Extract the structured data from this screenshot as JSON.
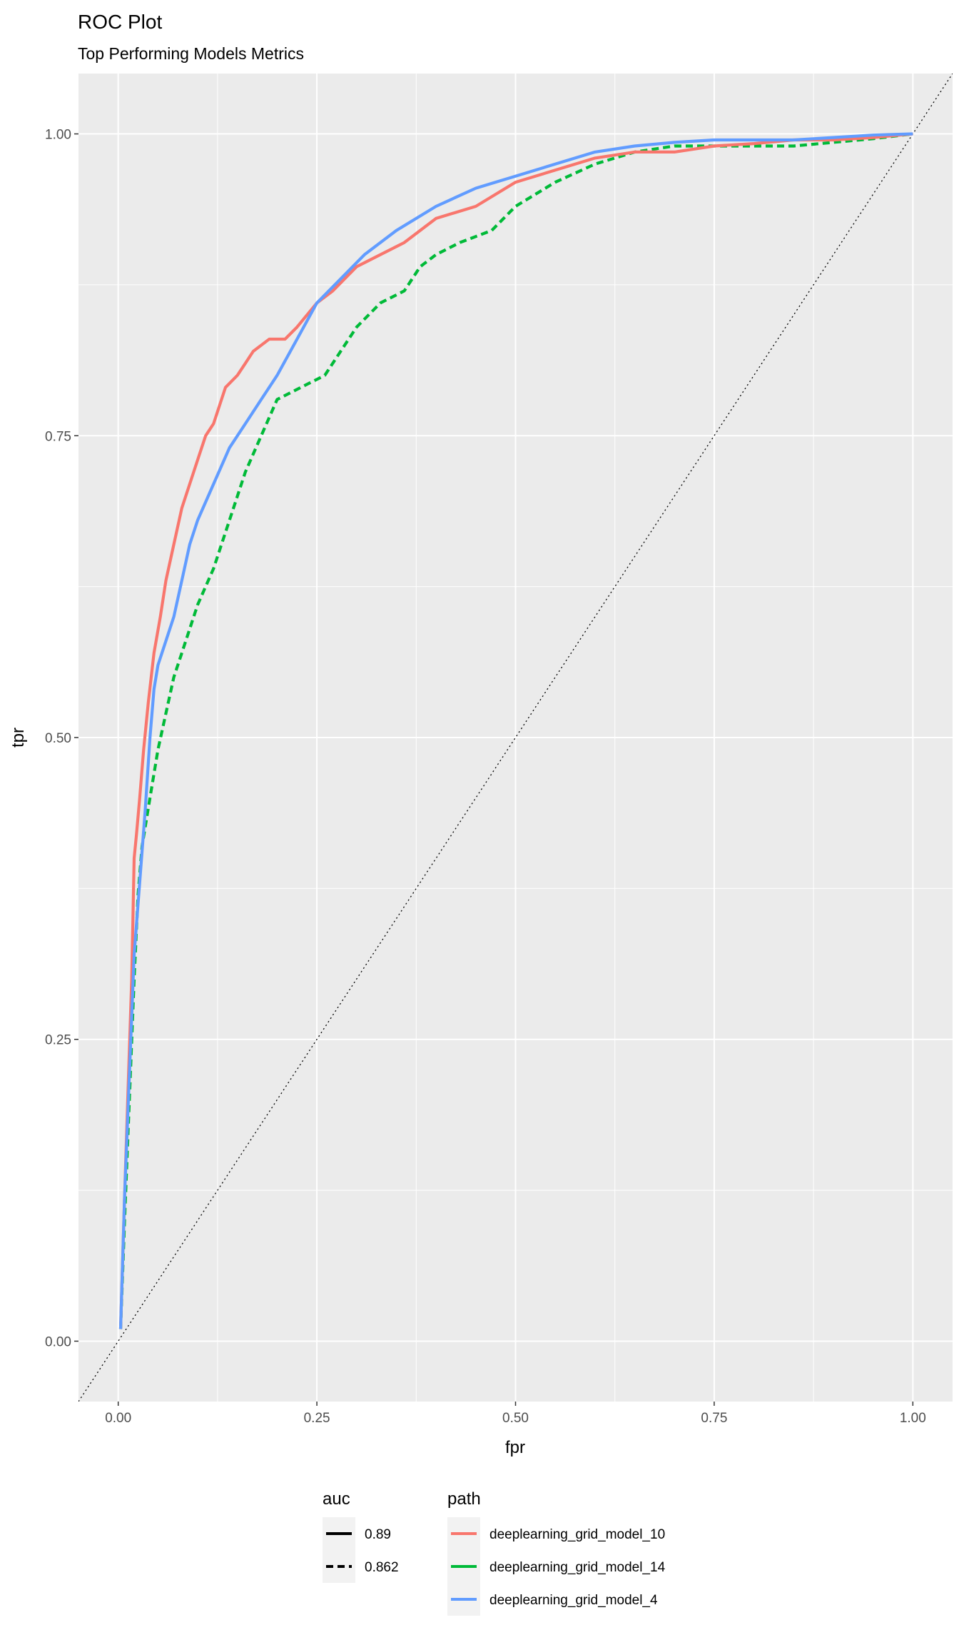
{
  "chart_data": {
    "type": "line",
    "title": "ROC Plot",
    "subtitle": "Top Performing Models Metrics",
    "xlabel": "fpr",
    "ylabel": "tpr",
    "xlim": [
      -0.05,
      1.05
    ],
    "ylim": [
      -0.05,
      1.05
    ],
    "x_ticks": [
      0.0,
      0.25,
      0.5,
      0.75,
      1.0
    ],
    "x_tick_labels": [
      "0.00",
      "0.25",
      "0.50",
      "0.75",
      "1.00"
    ],
    "y_ticks": [
      0.0,
      0.25,
      0.5,
      0.75,
      1.0
    ],
    "y_tick_labels": [
      "0.00",
      "0.25",
      "0.50",
      "0.75",
      "1.00"
    ],
    "grid": true,
    "panel_background": "#ebebeb",
    "reference_line": {
      "style": "dotted",
      "color": "#000000",
      "from": [
        -0.05,
        -0.05
      ],
      "to": [
        1.05,
        1.05
      ]
    },
    "legends": [
      {
        "title": "auc",
        "entries": [
          {
            "label": "0.89",
            "linetype": "solid"
          },
          {
            "label": "0.862",
            "linetype": "dashed"
          }
        ]
      },
      {
        "title": "path",
        "entries": [
          {
            "label": "deeplearning_grid_model_10",
            "color": "#f8766d"
          },
          {
            "label": "deeplearning_grid_model_14",
            "color": "#00ba38"
          },
          {
            "label": "deeplearning_grid_model_4",
            "color": "#619cff"
          }
        ]
      }
    ],
    "legend_position": "bottom",
    "series": [
      {
        "path": "deeplearning_grid_model_10",
        "auc": "0.89",
        "color": "#f8766d",
        "linetype": "solid",
        "x": [
          0.003,
          0.008,
          0.012,
          0.017,
          0.02,
          0.023,
          0.027,
          0.032,
          0.038,
          0.045,
          0.053,
          0.06,
          0.07,
          0.08,
          0.09,
          0.1,
          0.11,
          0.12,
          0.135,
          0.15,
          0.16,
          0.17,
          0.19,
          0.21,
          0.225,
          0.25,
          0.27,
          0.3,
          0.33,
          0.36,
          0.4,
          0.45,
          0.5,
          0.55,
          0.6,
          0.65,
          0.7,
          0.75,
          0.8,
          0.85,
          0.9,
          0.95,
          1.0
        ],
        "y": [
          0.01,
          0.12,
          0.2,
          0.3,
          0.4,
          0.42,
          0.45,
          0.49,
          0.53,
          0.57,
          0.6,
          0.63,
          0.66,
          0.69,
          0.71,
          0.73,
          0.75,
          0.76,
          0.79,
          0.8,
          0.81,
          0.82,
          0.83,
          0.83,
          0.84,
          0.86,
          0.87,
          0.89,
          0.9,
          0.91,
          0.93,
          0.94,
          0.96,
          0.97,
          0.98,
          0.985,
          0.985,
          0.99,
          0.992,
          0.995,
          0.995,
          0.997,
          1.0
        ]
      },
      {
        "path": "deeplearning_grid_model_14",
        "auc": "0.862",
        "color": "#00ba38",
        "linetype": "dashed",
        "x": [
          0.003,
          0.008,
          0.014,
          0.02,
          0.025,
          0.03,
          0.04,
          0.05,
          0.06,
          0.07,
          0.08,
          0.09,
          0.1,
          0.12,
          0.14,
          0.16,
          0.18,
          0.2,
          0.23,
          0.26,
          0.28,
          0.3,
          0.33,
          0.36,
          0.38,
          0.4,
          0.43,
          0.47,
          0.5,
          0.55,
          0.6,
          0.65,
          0.7,
          0.75,
          0.8,
          0.85,
          0.9,
          0.95,
          1.0
        ],
        "y": [
          0.01,
          0.1,
          0.2,
          0.3,
          0.37,
          0.41,
          0.45,
          0.49,
          0.52,
          0.55,
          0.57,
          0.59,
          0.61,
          0.64,
          0.68,
          0.72,
          0.75,
          0.78,
          0.79,
          0.8,
          0.82,
          0.84,
          0.86,
          0.87,
          0.89,
          0.9,
          0.91,
          0.92,
          0.94,
          0.96,
          0.975,
          0.985,
          0.99,
          0.99,
          0.99,
          0.99,
          0.993,
          0.996,
          1.0
        ]
      },
      {
        "path": "deeplearning_grid_model_4",
        "auc": "0.89",
        "color": "#619cff",
        "linetype": "solid",
        "x": [
          0.003,
          0.008,
          0.014,
          0.02,
          0.027,
          0.034,
          0.04,
          0.045,
          0.05,
          0.06,
          0.07,
          0.08,
          0.09,
          0.1,
          0.12,
          0.14,
          0.16,
          0.18,
          0.2,
          0.225,
          0.25,
          0.28,
          0.31,
          0.35,
          0.4,
          0.45,
          0.5,
          0.55,
          0.6,
          0.65,
          0.7,
          0.75,
          0.8,
          0.85,
          0.9,
          0.95,
          1.0
        ],
        "y": [
          0.01,
          0.12,
          0.22,
          0.32,
          0.38,
          0.44,
          0.5,
          0.54,
          0.56,
          0.58,
          0.6,
          0.63,
          0.66,
          0.68,
          0.71,
          0.74,
          0.76,
          0.78,
          0.8,
          0.83,
          0.86,
          0.88,
          0.9,
          0.92,
          0.94,
          0.955,
          0.965,
          0.975,
          0.985,
          0.99,
          0.993,
          0.995,
          0.995,
          0.995,
          0.997,
          0.999,
          1.0
        ]
      }
    ]
  }
}
